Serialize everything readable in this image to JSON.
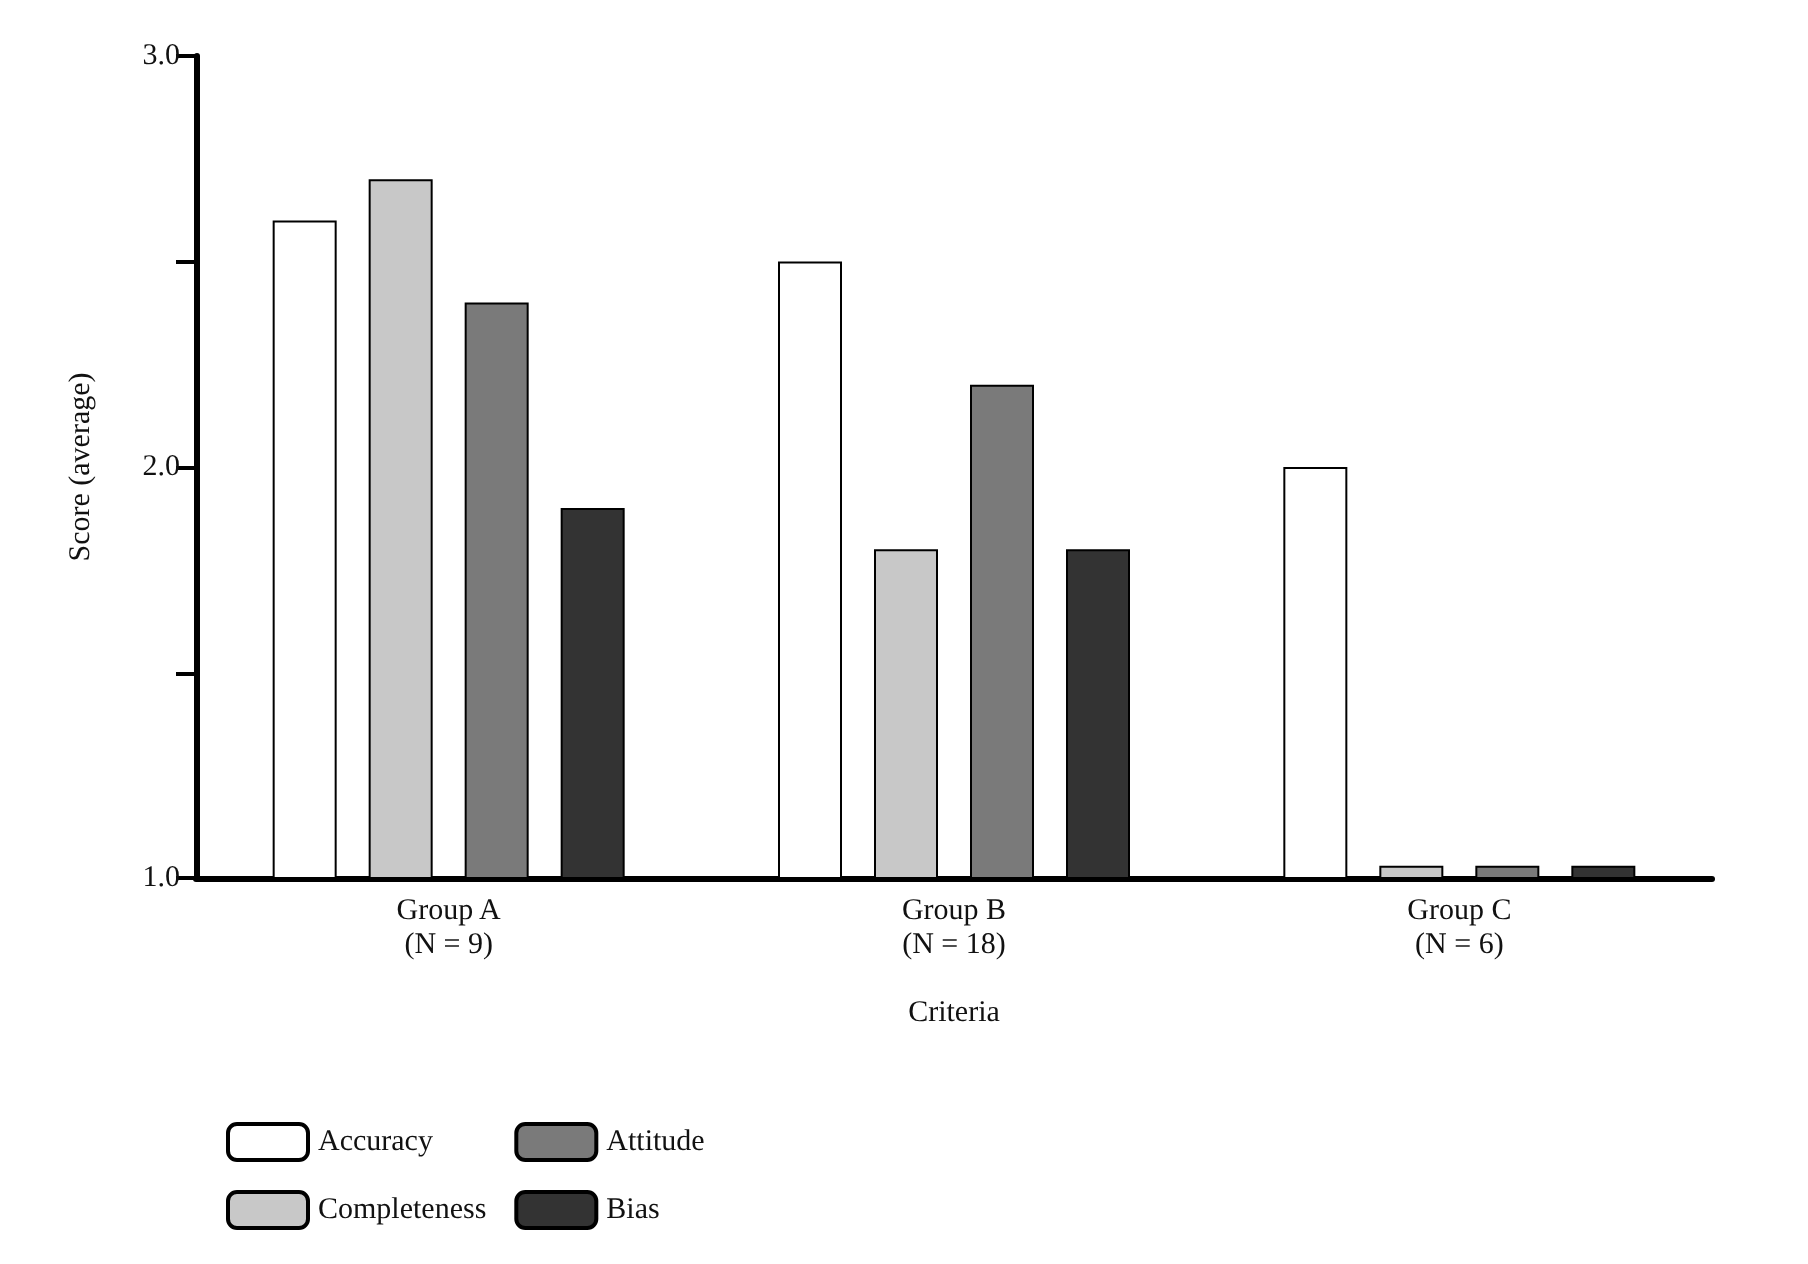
{
  "chart_data": {
    "type": "bar",
    "xlabel": "Criteria",
    "ylabel": "Score (average)",
    "categories": [
      "Group A\n(N = 9)",
      "Group B\n(N = 18)",
      "Group C\n(N = 6)"
    ],
    "series": [
      {
        "name": "Accuracy",
        "color": "#ffffff",
        "values": [
          2.6,
          2.5,
          2.0
        ]
      },
      {
        "name": "Completeness",
        "color": "#c8c8c8",
        "values": [
          2.7,
          1.8,
          1.03
        ]
      },
      {
        "name": "Attitude",
        "color": "#7a7a7a",
        "values": [
          2.4,
          2.2,
          1.03
        ]
      },
      {
        "name": "Bias",
        "color": "#333333",
        "values": [
          1.9,
          1.8,
          1.03
        ]
      }
    ],
    "ylim": [
      1,
      3
    ],
    "yticks": [
      {
        "value": 1,
        "label": "1.0"
      },
      {
        "value": 1.5,
        "label": null
      },
      {
        "value": 2,
        "label": "2.0"
      },
      {
        "value": 2.5,
        "label": null
      },
      {
        "value": 3,
        "label": "3.0"
      }
    ],
    "grid": false,
    "legend": "bottom left"
  }
}
